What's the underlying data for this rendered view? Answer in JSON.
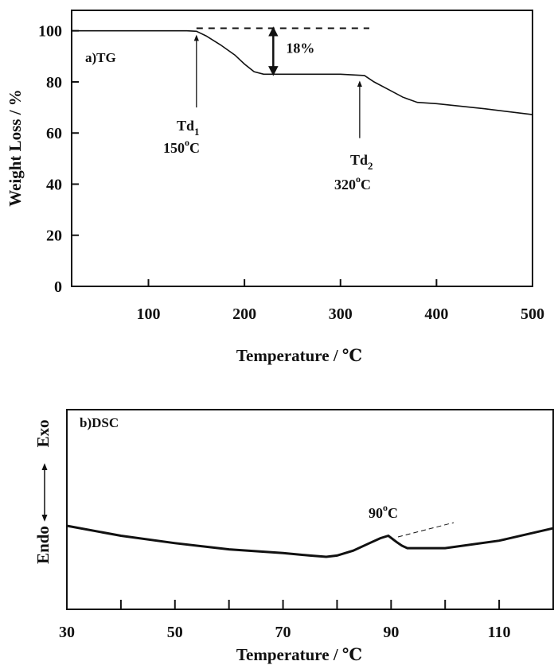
{
  "chart_data": [
    {
      "type": "line",
      "panel_label": "a)TG",
      "xlabel": "Temperature  / ℃",
      "ylabel": "Weight Loss / %",
      "xlim": [
        20,
        500
      ],
      "ylim": [
        0,
        108
      ],
      "x_ticks": [
        100,
        200,
        300,
        400,
        500
      ],
      "y_ticks": [
        0,
        20,
        40,
        60,
        80,
        100
      ],
      "series": [
        {
          "x": [
            20,
            100,
            140,
            150,
            160,
            175,
            190,
            200,
            210,
            220,
            250,
            300,
            325,
            335,
            350,
            365,
            380,
            400,
            450,
            500
          ],
          "y": [
            100,
            100,
            100,
            99.8,
            98,
            94.5,
            90.5,
            87,
            84,
            83,
            83,
            83,
            82.5,
            80,
            77,
            74,
            72,
            71.5,
            69.5,
            67.2
          ]
        }
      ],
      "reference_line": {
        "x": [
          150,
          330
        ],
        "y": [
          101,
          101
        ],
        "style": "dashed"
      },
      "annotations": {
        "loss_label": "18%",
        "loss_arrow": {
          "x": 230,
          "from": 101,
          "to": 83
        },
        "td1": {
          "main": "Td",
          "sub": "1",
          "value": "150",
          "unit": "C",
          "deg": "o",
          "arrow_x": 150
        },
        "td2": {
          "main": "Td",
          "sub": "2",
          "value": "320",
          "unit": "C",
          "deg": "o",
          "arrow_x": 320
        }
      }
    },
    {
      "type": "line",
      "panel_label": "b)DSC",
      "xlabel": "Temperature  / ℃",
      "ylabel_top": "Exo",
      "ylabel_bottom": "Endo",
      "xlim": [
        30,
        120
      ],
      "x_ticks": [
        30,
        50,
        70,
        90,
        110
      ],
      "x_minor_ticks": [
        40,
        60,
        80,
        100
      ],
      "series": [
        {
          "x": [
            30,
            40,
            50,
            60,
            70,
            75,
            78,
            80,
            83,
            86,
            88,
            89.5,
            91,
            92,
            93,
            95,
            100,
            110,
            120
          ],
          "y": [
            1.0,
            0.92,
            0.86,
            0.81,
            0.78,
            0.76,
            0.75,
            0.76,
            0.8,
            0.86,
            0.9,
            0.92,
            0.87,
            0.84,
            0.82,
            0.82,
            0.82,
            0.88,
            0.98
          ]
        }
      ],
      "annotations": {
        "peak": {
          "value": "90",
          "deg": "o",
          "unit": "C"
        }
      }
    }
  ]
}
